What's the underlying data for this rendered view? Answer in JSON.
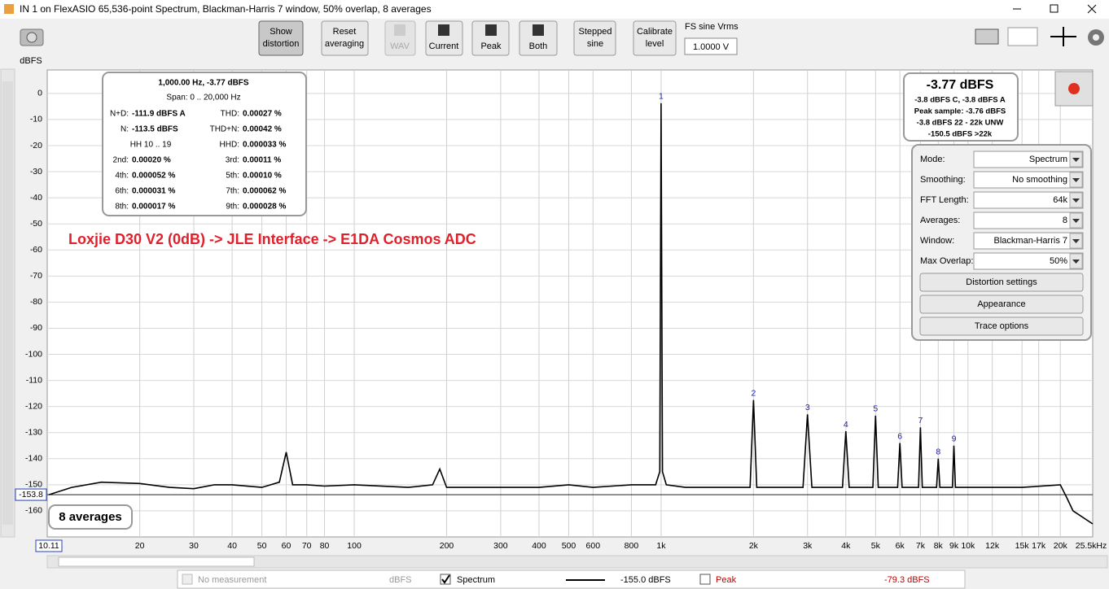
{
  "window": {
    "title": "IN 1 on FlexASIO 65,536-point Spectrum, Blackman-Harris 7 window, 50% overlap, 8 averages"
  },
  "toolbar": {
    "show_distortion": [
      "Show",
      "distortion"
    ],
    "reset_averaging": [
      "Reset",
      "averaging"
    ],
    "wav": "WAV",
    "current": "Current",
    "peak": "Peak",
    "both": "Both",
    "stepped_sine": [
      "Stepped",
      "sine"
    ],
    "calibrate_level": [
      "Calibrate",
      "level"
    ],
    "fs_sine_label": "FS sine Vrms",
    "fs_sine_value": "1.0000 V"
  },
  "chart_data": {
    "type": "line",
    "y_label": "dBFS",
    "annotation": "Loxjie D30 V2 (0dB) -> JLE Interface -> E1DA Cosmos ADC",
    "annotation_color": "#e0202a",
    "x_log": true,
    "grid": true,
    "xlim": [
      10.11,
      25500
    ],
    "x_end_label": "25.5kHz",
    "ylim": [
      -170,
      9
    ],
    "yticks": [
      0,
      -10,
      -20,
      -30,
      -40,
      -50,
      -60,
      -70,
      -80,
      -90,
      -100,
      -110,
      -120,
      -130,
      -140,
      -150,
      -160
    ],
    "xticks": [
      20,
      30,
      40,
      50,
      60,
      70,
      80,
      100,
      200,
      300,
      400,
      500,
      600,
      800,
      {
        "value": 1000,
        "label": "1k"
      },
      {
        "value": 2000,
        "label": "2k"
      },
      {
        "value": 3000,
        "label": "3k"
      },
      {
        "value": 4000,
        "label": "4k"
      },
      {
        "value": 5000,
        "label": "5k"
      },
      {
        "value": 6000,
        "label": "6k"
      },
      {
        "value": 7000,
        "label": "7k"
      },
      {
        "value": 8000,
        "label": "8k"
      },
      {
        "value": 9000,
        "label": "9k"
      },
      {
        "value": 10000,
        "label": "10k"
      },
      {
        "value": 12000,
        "label": "12k"
      },
      {
        "value": 15000,
        "label": "15k"
      },
      {
        "value": 17000,
        "label": "17k"
      },
      {
        "value": 20000,
        "label": "20k"
      }
    ],
    "cursor_level": -153.8,
    "series": [
      {
        "name": "Spectrum",
        "color": "#000000",
        "x": [
          10.11,
          12,
          15,
          20,
          25,
          30,
          35,
          40,
          50,
          57,
          60,
          63,
          70,
          80,
          100,
          150,
          180,
          190,
          200,
          300,
          400,
          500,
          600,
          800,
          960,
          990,
          1000,
          1010,
          1040,
          1200,
          1500,
          1950,
          2000,
          2050,
          2900,
          3000,
          3100,
          3900,
          4000,
          4100,
          4900,
          5000,
          5100,
          5900,
          6000,
          6100,
          6900,
          7000,
          7100,
          7900,
          8000,
          8100,
          8900,
          9000,
          9100,
          10000,
          15000,
          20000,
          21000,
          22000,
          25500
        ],
        "values": [
          -153.8,
          -151,
          -149,
          -149.5,
          -151,
          -151.5,
          -150,
          -150,
          -151,
          -149,
          -137.5,
          -150,
          -150,
          -150.5,
          -150,
          -151,
          -150,
          -144,
          -151,
          -151,
          -151,
          -150,
          -151,
          -150,
          -150,
          -145,
          -3.77,
          -145,
          -150,
          -151,
          -151,
          -151,
          -117.5,
          -151,
          -151,
          -123,
          -151,
          -151,
          -129.5,
          -151,
          -151,
          -123.5,
          -151,
          -151,
          -134,
          -151,
          -151,
          -128,
          -151,
          -151,
          -140,
          -151,
          -151,
          -135,
          -151,
          -151,
          -151,
          -150,
          -155,
          -160,
          -165
        ]
      }
    ],
    "harmonic_markers": {
      "color": "#2020b0",
      "labels": [
        1,
        2,
        3,
        4,
        5,
        6,
        7,
        8,
        9
      ],
      "x": [
        1000,
        2000,
        3000,
        4000,
        5000,
        6000,
        7000,
        8000,
        9000
      ],
      "values": [
        -3.77,
        -117.5,
        -123,
        -129.5,
        -123.5,
        -134,
        -128,
        -140,
        -135
      ]
    },
    "averages_label": "8 averages"
  },
  "info_box": {
    "header": "1,000.00 Hz, -3.77 dBFS",
    "span": "Span: 0 .. 20,000 Hz",
    "left": [
      [
        "N+D:",
        "-111.9 dBFS A"
      ],
      [
        "N:",
        "-113.5 dBFS"
      ],
      [
        "2nd:",
        "0.00020 %"
      ],
      [
        "4th:",
        "0.000052 %"
      ],
      [
        "6th:",
        "0.000031 %"
      ],
      [
        "8th:",
        "0.000017 %"
      ]
    ],
    "hh": "HH 10 .. 19",
    "right": [
      [
        "THD:",
        "0.00027 %"
      ],
      [
        "THD+N:",
        "0.00042 %"
      ],
      [
        "HHD:",
        "0.000033 %"
      ],
      [
        "3rd:",
        "0.00011 %"
      ],
      [
        "5th:",
        "0.00010 %"
      ],
      [
        "7th:",
        "0.000062 %"
      ],
      [
        "9th:",
        "0.000028 %"
      ]
    ]
  },
  "level_box": {
    "level": "-3.77 dBFS",
    "lines": [
      "-3.8 dBFS C, -3.8 dBFS A",
      "Peak sample: -3.76 dBFS",
      "-3.8 dBFS 22 - 22k UNW",
      "-150.5 dBFS >22k"
    ]
  },
  "controls": {
    "rows": [
      {
        "label": "Mode:",
        "value": "Spectrum"
      },
      {
        "label": "Smoothing:",
        "value": "No  smoothing"
      },
      {
        "label": "FFT Length:",
        "value": "64k"
      },
      {
        "label": "Averages:",
        "value": "8"
      },
      {
        "label": "Window:",
        "value": "Blackman-Harris 7"
      },
      {
        "label": "Max Overlap:",
        "value": "50%"
      }
    ],
    "buttons": [
      "Distortion settings",
      "Appearance",
      "Trace options"
    ]
  },
  "legend_bar": {
    "no_measurement": "No measurement",
    "unit": "dBFS",
    "spectrum": "Spectrum",
    "spectrum_level": "-155.0 dBFS",
    "peak": "Peak",
    "peak_level": "-79.3 dBFS"
  }
}
